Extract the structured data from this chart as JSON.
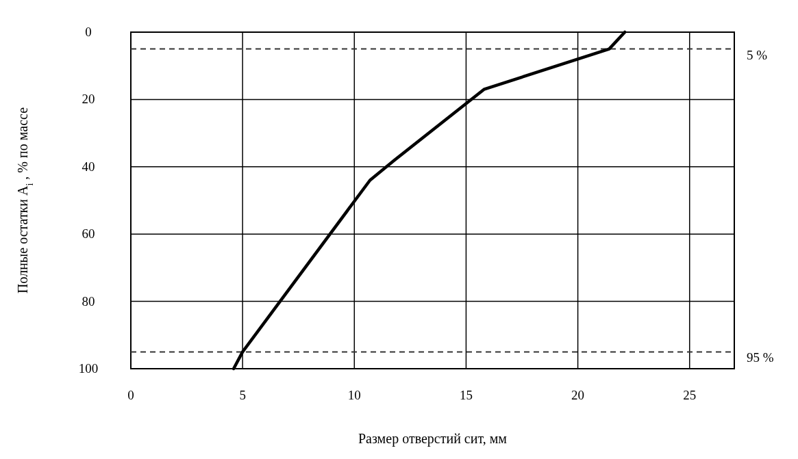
{
  "chart_data": {
    "type": "line",
    "xlabel": "Размер отверстий сит, мм",
    "ylabel": "Полные остатки  A$_{i}$ , % по массе",
    "x": [
      4.6,
      5.0,
      10.7,
      11.8,
      15.8,
      21.4,
      22.1
    ],
    "series": [
      {
        "color": "#000000",
        "values": [
          100,
          95,
          44,
          38,
          17,
          5,
          0
        ]
      }
    ],
    "xlim": [
      0,
      27
    ],
    "xticks": [
      0,
      5,
      10,
      15,
      20,
      25
    ],
    "ylim": [
      100,
      0
    ],
    "yticks": [
      0,
      20,
      40,
      60,
      80,
      100
    ],
    "grid": true,
    "marker": "none",
    "line_style": "solid",
    "ref_lines": [
      {
        "axis": "y",
        "value": 5,
        "label": "5 %",
        "color": "#333333",
        "line_style": "dashed"
      },
      {
        "axis": "y",
        "value": 95,
        "label": "95 %",
        "color": "#333333",
        "line_style": "dashed"
      }
    ]
  }
}
